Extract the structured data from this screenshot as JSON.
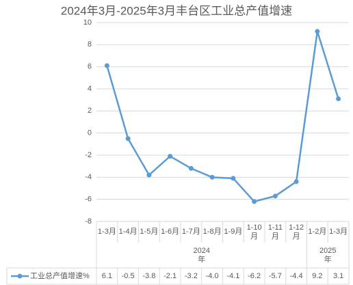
{
  "chart_data": {
    "type": "line",
    "title": "2024年3月-2025年3月丰台区工业总产值增速",
    "categories": [
      "1-3月",
      "1-4月",
      "1-5月",
      "1-6月",
      "1-7月",
      "1-8月",
      "1-9月",
      "1-10月",
      "1-11月",
      "1-12月",
      "1-2月",
      "1-3月"
    ],
    "groups": [
      {
        "label": "2024年",
        "count": 10
      },
      {
        "label": "2025年",
        "count": 2
      }
    ],
    "series": [
      {
        "name": "工业总产值增速%",
        "color": "#5b9bd5",
        "values": [
          6.1,
          -0.5,
          -3.8,
          -2.1,
          -3.2,
          -4.0,
          -4.1,
          -6.2,
          -5.7,
          -4.4,
          9.2,
          3.1
        ],
        "value_labels": [
          "6.1",
          "-0.5",
          "-3.8",
          "-2.1",
          "-3.2",
          "-4.0",
          "-4.1",
          "-6.2",
          "-5.7",
          "-4.4",
          "9.2",
          "3.1"
        ]
      }
    ],
    "ylim": [
      -8,
      10
    ],
    "yticks": [
      -8,
      -6,
      -4,
      -2,
      0,
      2,
      4,
      6,
      8,
      10
    ],
    "grid": true
  }
}
